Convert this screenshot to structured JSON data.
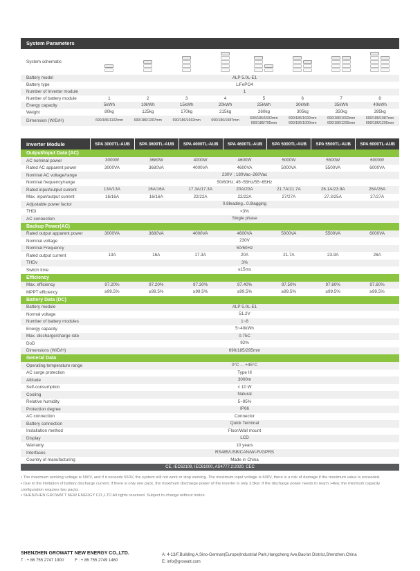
{
  "system_parameters": {
    "title": "System Parameters",
    "rows": [
      {
        "label": "System schematic",
        "type": "schematic",
        "towers": [
          [
            2
          ],
          [
            3
          ],
          [
            4
          ],
          [
            5
          ],
          [
            4,
            2
          ],
          [
            4,
            3
          ],
          [
            4,
            4
          ],
          [
            5,
            4
          ]
        ]
      },
      {
        "label": "Battery model",
        "span": "ALP 5.0L-E1"
      },
      {
        "label": "Battery type",
        "span": "LiFePO4"
      },
      {
        "label": "Number of Inverter module",
        "span": "1"
      },
      {
        "label": "Number of battery module",
        "values": [
          "1",
          "2",
          "3",
          "4",
          "5",
          "6",
          "7",
          "8"
        ]
      },
      {
        "label": "Energy capacity",
        "values": [
          "5kWh",
          "10kWh",
          "15kWh",
          "20kWh",
          "25kWh",
          "30kWh",
          "35kWh",
          "40kWh"
        ]
      },
      {
        "label": "Weight",
        "values": [
          "80kg",
          "125kg",
          "170kg",
          "215kg",
          "260kg",
          "305kg",
          "350kg",
          "395kg"
        ]
      },
      {
        "label": "Dimension (W/D/H)",
        "small": true,
        "values": [
          "690/186/1102mm",
          "690/186/1397mm",
          "690/186/1692mm",
          "690/186/1987mm",
          "690/186/1692mm\n690/186/705mm",
          "690/186/1692mm\n690/186/1000mm",
          "690/186/1692mm\n690/186/1295mm",
          "690/186/1987mm\n690/186/1295mm"
        ]
      }
    ]
  },
  "inverter_module": {
    "title": "Inverter Module",
    "models": [
      "SPA 3000TL-AUB",
      "SPA 3600TL-AUB",
      "SPA 4000TL-AUB",
      "SPA 4600TL-AUB",
      "SPA 5000TL-AUB",
      "SPA 5500TL-AUB",
      "SPA 6000TL-AUB"
    ],
    "sections": [
      {
        "title": "Output/Input Data (AC)",
        "rows": [
          {
            "label": "AC nominal power",
            "values": [
              "3000W",
              "3680W",
              "4000W",
              "4600W",
              "5000W",
              "5500W",
              "6000W"
            ]
          },
          {
            "label": "Rated AC apparent power",
            "values": [
              "3000VA",
              "3680VA",
              "4000VA",
              "4600VA",
              "5000VA",
              "5500VA",
              "6000VA"
            ]
          },
          {
            "label": "Nominal AC voltage/range",
            "span": "230V ; 180Vac–260Vac"
          },
          {
            "label": "Nominal frequency/range",
            "span": "50/60Hz; 45~55Hz/55~65Hz"
          },
          {
            "label": "Rated input/output current",
            "values": [
              "13A/13A",
              "16A/16A",
              "17.3A/17.3A",
              "20A/20A",
              "21.7A/21.7A",
              "26.1A/23.9A",
              "26A/26A"
            ]
          },
          {
            "label": "Max. input/output current",
            "values": [
              "16/16A",
              "16/16A",
              "22/22A",
              "22/22A",
              "27/27A",
              "27.3/25A",
              "27/27A"
            ]
          },
          {
            "label": "Adjustable power factor",
            "span": "0.8leading...0.8lagging"
          },
          {
            "label": "THDi",
            "span": "<3%"
          },
          {
            "label": "AC connection",
            "span": "Single phase"
          }
        ]
      },
      {
        "title": "Backup Power(AC)",
        "rows": [
          {
            "label": "Rated output apparent power",
            "values": [
              "3000VA",
              "3680VA",
              "4000VA",
              "4600VA",
              "5000VA",
              "5500VA",
              "6000VA"
            ]
          },
          {
            "label": "Nominal voltage",
            "span": "230V"
          },
          {
            "label": "Nominal Frequency",
            "span": "50/60Hz"
          },
          {
            "label": "Rated output current",
            "values": [
              "13A",
              "16A",
              "17.3A",
              "20A",
              "21.7A",
              "23.9A",
              "26A"
            ]
          },
          {
            "label": "THDv",
            "span": "3%"
          },
          {
            "label": "Switch time",
            "span": "≤15ms"
          }
        ]
      },
      {
        "title": "Efficiency",
        "rows": [
          {
            "label": "Max. efficiency",
            "values": [
              "97.20%",
              "97.20%",
              "97.30%",
              "97.40%",
              "97.50%",
              "97.60%",
              "97.60%"
            ]
          },
          {
            "label": "MPPT efficiency",
            "values": [
              "≥99.5%",
              "≥99.5%",
              "≥99.5%",
              "≥99.5%",
              "≥99.5%",
              "≥99.5%",
              "≥99.5%"
            ]
          }
        ]
      },
      {
        "title": "Battery Data (DC)",
        "rows": [
          {
            "label": "Battery module",
            "span": "ALP 5.0L-E1"
          },
          {
            "label": "Normal voltage",
            "span": "51.2V"
          },
          {
            "label": "Number of battery modules",
            "span": "1~8"
          },
          {
            "label": "Energy capacity",
            "span": "5~40kWh"
          },
          {
            "label": "Max. discharge/charge rate",
            "span": "0.75C"
          },
          {
            "label": "DoD",
            "span": "92%"
          },
          {
            "label": "Dimensions (W/D/H)",
            "span": "690/185/295mm"
          }
        ]
      },
      {
        "title": "General Data",
        "rows": [
          {
            "label": "Operating temperature range",
            "span": "0°C ... +45°C"
          },
          {
            "label": "AC surge protection",
            "span": "Type III"
          },
          {
            "label": "Altitude",
            "span": "3000m"
          },
          {
            "label": "Self-consumption",
            "span": "< 10 W"
          },
          {
            "label": "Cooling",
            "span": "Natural"
          },
          {
            "label": "Relative humidity",
            "span": "5~95%"
          },
          {
            "label": "Protection degree",
            "span": "IP66"
          },
          {
            "label": "AC connection",
            "span": "Connector"
          },
          {
            "label": "Battery connection",
            "span": "Quick Terminal"
          },
          {
            "label": "Installation method",
            "span": "Floor/Wall mount"
          },
          {
            "label": "Display",
            "span": "LCD"
          },
          {
            "label": "Warranty",
            "span": "10 years"
          },
          {
            "label": "Interfaces",
            "span": "RS485/USB/CAN/Wi-Fi/GPRS"
          },
          {
            "label": "Country of manufacturing",
            "span": "Made in China"
          }
        ]
      }
    ],
    "certifications": "CE, IEC62109, IEC61000,  AS4777.2:2020,  CEC"
  },
  "footnotes": [
    "• The maximum working voltage is 560V, and if it exceeds 560V, the system will not work or stop working. The maximum input voltage is 600V, there is a risk of damage if the maximum value is exceeded.",
    "• Due to the limitation of battery discharge current, if there is only one pack, the maximum discharge power of the inverter is only 3.8kw. If the discharge power needs to reach >4kw, the minimum capacity configuration requires two packs.",
    "• SHENZHEN GROWATT NEW ENERGY CO.,LTD All rights reserved. Subject to change without notice."
  ],
  "footer": {
    "company": "SHENZHEN GROWATT NEW ENERGY CO.,LTD.",
    "phone": "T : + 86 755 2747 1900",
    "fax": "F : + 86 755 2749 1460",
    "address": "A: 4-13/F,Building A,Sino-German(Europe)Industrial Park,Hangcheng Ave,Bao'an District,Shenzhen,China",
    "email": "E: info@growatt.com"
  }
}
